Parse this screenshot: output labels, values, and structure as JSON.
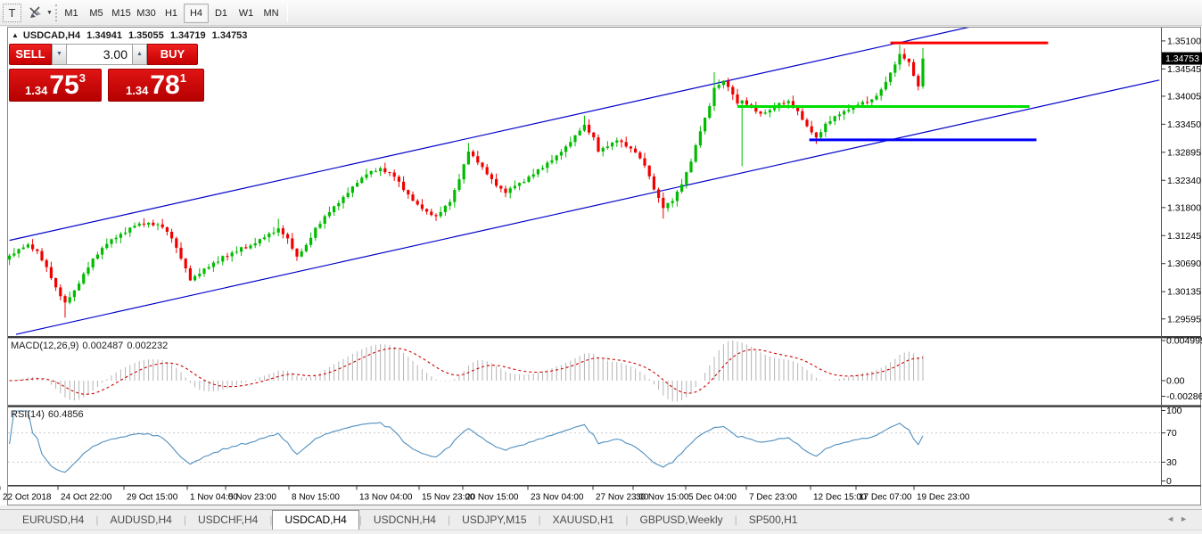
{
  "icons": {
    "header_triangle": "▲",
    "spin_up": "▲",
    "spin_down": "▼",
    "toolbar_caret": "▼",
    "tab_prev": "◄",
    "tab_next": "►",
    "text_tool": "T"
  },
  "toolbar": {
    "timeframes": [
      "M1",
      "M5",
      "M15",
      "M30",
      "H1",
      "H4",
      "D1",
      "W1",
      "MN"
    ],
    "active_timeframe": "H4"
  },
  "header": {
    "symbol": "USDCAD,H4",
    "open": "1.34941",
    "high": "1.35055",
    "low": "1.34719",
    "close": "1.34753"
  },
  "trade_panel": {
    "sell_label": "SELL",
    "buy_label": "BUY",
    "volume": "3.00",
    "sell": {
      "prefix": "1.34",
      "big": "75",
      "sup": "3"
    },
    "buy": {
      "prefix": "1.34",
      "big": "78",
      "sup": "1"
    }
  },
  "macd_panel": {
    "name": "MACD(12,26,9)",
    "value_main": "0.002487",
    "value_signal": "0.002232",
    "axis_labels": [
      "0.004995",
      "0.00",
      "-0.00286"
    ]
  },
  "rsi_panel": {
    "name": "RSI(14)",
    "value": "60.4856",
    "axis_labels": [
      "100",
      "70",
      "30",
      "0"
    ],
    "levels": [
      70,
      30
    ]
  },
  "tabs": {
    "items": [
      "EURUSD,H4",
      "AUDUSD,H4",
      "USDCHF,H4",
      "USDCAD,H4",
      "USDCNH,H4",
      "USDJPY,M15",
      "XAUUSD,H1",
      "GBPUSD,Weekly",
      "SP500,H1"
    ],
    "active": "USDCAD,H4"
  },
  "colors": {
    "candle_up": "#00bb00",
    "candle_down": "#f20000",
    "wick_up": "#00bb00",
    "wick_down": "#f20000",
    "macd_hist": "#b4b4b4",
    "macd_signal": "#cc0000",
    "rsi_line": "#4f8fc0",
    "channel": "#0000cc",
    "hline_red": "#ff0000",
    "hline_green": "#00e000",
    "hline_blue": "#0000ff"
  },
  "chart_data": {
    "type": "candlestick",
    "symbol": "USDCAD",
    "timeframe": "H4",
    "ohlc_current": {
      "open": 1.34941,
      "high": 1.35055,
      "low": 1.34719,
      "close": 1.34753
    },
    "price_axis_ticks": [
      "1.35100",
      "1.34545",
      "1.34005",
      "1.33450",
      "1.32895",
      "1.32340",
      "1.31800",
      "1.31245",
      "1.30690",
      "1.30135",
      "1.29595"
    ],
    "current_price": "1.34753",
    "ylim": [
      1.29273,
      1.35363
    ],
    "candle_count": 198,
    "close_waypoints": [
      [
        0,
        1.3085
      ],
      [
        2,
        1.3098
      ],
      [
        4,
        1.3107
      ],
      [
        6,
        1.3094
      ],
      [
        8,
        1.3062
      ],
      [
        10,
        1.3022
      ],
      [
        12,
        1.2992
      ],
      [
        14,
        1.3016
      ],
      [
        16,
        1.3049
      ],
      [
        18,
        1.3079
      ],
      [
        21,
        1.3108
      ],
      [
        24,
        1.3128
      ],
      [
        27,
        1.3144
      ],
      [
        30,
        1.315
      ],
      [
        33,
        1.3141
      ],
      [
        35,
        1.3119
      ],
      [
        37,
        1.3079
      ],
      [
        39,
        1.3036
      ],
      [
        41,
        1.3049
      ],
      [
        44,
        1.3071
      ],
      [
        48,
        1.3091
      ],
      [
        52,
        1.3105
      ],
      [
        55,
        1.3121
      ],
      [
        58,
        1.3139
      ],
      [
        60,
        1.3119
      ],
      [
        62,
        1.3083
      ],
      [
        64,
        1.3106
      ],
      [
        66,
        1.314
      ],
      [
        69,
        1.3171
      ],
      [
        72,
        1.3201
      ],
      [
        75,
        1.3229
      ],
      [
        77,
        1.3246
      ],
      [
        80,
        1.3258
      ],
      [
        83,
        1.3241
      ],
      [
        86,
        1.3206
      ],
      [
        88,
        1.3186
      ],
      [
        90,
        1.3172
      ],
      [
        92,
        1.3163
      ],
      [
        95,
        1.3191
      ],
      [
        97,
        1.3236
      ],
      [
        99,
        1.3291
      ],
      [
        101,
        1.3269
      ],
      [
        103,
        1.3246
      ],
      [
        105,
        1.3223
      ],
      [
        107,
        1.3209
      ],
      [
        109,
        1.3223
      ],
      [
        111,
        1.3231
      ],
      [
        113,
        1.3246
      ],
      [
        116,
        1.3269
      ],
      [
        118,
        1.3283
      ],
      [
        120,
        1.3301
      ],
      [
        122,
        1.3323
      ],
      [
        124,
        1.3344
      ],
      [
        126,
        1.3319
      ],
      [
        127,
        1.3291
      ],
      [
        129,
        1.3301
      ],
      [
        131,
        1.3313
      ],
      [
        133,
        1.3301
      ],
      [
        135,
        1.3289
      ],
      [
        137,
        1.3263
      ],
      [
        139,
        1.3216
      ],
      [
        141,
        1.3179
      ],
      [
        143,
        1.3193
      ],
      [
        145,
        1.3226
      ],
      [
        147,
        1.3271
      ],
      [
        149,
        1.3331
      ],
      [
        151,
        1.3381
      ],
      [
        152,
        1.3417
      ],
      [
        154,
        1.3431
      ],
      [
        155,
        1.3419
      ],
      [
        157,
        1.3386
      ],
      [
        158,
        1.3392
      ],
      [
        160,
        1.3379
      ],
      [
        162,
        1.3366
      ],
      [
        164,
        1.3373
      ],
      [
        166,
        1.3387
      ],
      [
        168,
        1.3391
      ],
      [
        170,
        1.3371
      ],
      [
        172,
        1.3341
      ],
      [
        174,
        1.3319
      ],
      [
        176,
        1.3346
      ],
      [
        178,
        1.3361
      ],
      [
        180,
        1.3371
      ],
      [
        182,
        1.3381
      ],
      [
        184,
        1.3389
      ],
      [
        186,
        1.3394
      ],
      [
        188,
        1.3414
      ],
      [
        190,
        1.3447
      ],
      [
        192,
        1.3484
      ],
      [
        194,
        1.3468
      ],
      [
        196,
        1.342
      ],
      [
        197,
        1.34753
      ]
    ],
    "special_wicks": [
      [
        12,
        "low",
        1.2962
      ],
      [
        58,
        "high",
        1.3158
      ],
      [
        99,
        "high",
        1.3308
      ],
      [
        124,
        "high",
        1.3362
      ],
      [
        141,
        "low",
        1.3158
      ],
      [
        152,
        "high",
        1.3448
      ],
      [
        158,
        "low",
        1.3262
      ],
      [
        174,
        "low",
        1.3306
      ],
      [
        192,
        "high",
        1.3502
      ],
      [
        196,
        "low",
        1.3412
      ],
      [
        197,
        "high",
        1.3496
      ]
    ],
    "jitter_pattern": [
      0.00035,
      -0.00045,
      0.00055,
      -0.00025,
      0.0004,
      -0.0006,
      0.0003,
      -0.0005,
      0.00045,
      -0.00035
    ],
    "wick_pattern": [
      3,
      7,
      2,
      9,
      4,
      6,
      1,
      8,
      3,
      5,
      7,
      2
    ],
    "indicators": [
      {
        "name": "MACD",
        "params": [
          12,
          26,
          9
        ],
        "display_main": 0.002487,
        "display_signal": 0.002232,
        "axis_values": [
          0.004995,
          0,
          -0.00286
        ]
      },
      {
        "name": "RSI",
        "params": [
          14
        ],
        "display": 60.4856,
        "levels": [
          70,
          30
        ],
        "range": [
          0,
          100
        ]
      }
    ],
    "overlays": {
      "channel_lines": [
        {
          "i": [
            0,
            207.2
          ],
          "p": [
            1.31151,
            1.35378
          ]
        },
        {
          "i": [
            1.42,
            248
          ],
          "p": [
            1.2929,
            1.34325
          ]
        }
      ],
      "hlines": [
        {
          "color": "hline_red",
          "p": 1.3506,
          "i": [
            190,
            224
          ],
          "w": 3
        },
        {
          "color": "hline_green",
          "p": 1.338,
          "i": [
            157,
            220
          ],
          "w": 3
        },
        {
          "color": "hline_blue",
          "p": 1.3314,
          "i": [
            172.5,
            221.5
          ],
          "w": 3
        }
      ]
    },
    "time_axis": {
      "labels": [
        "22 Oct 2018",
        "24 Oct 22:00",
        "29 Oct 15:00",
        "1 Nov 04:00",
        "5 Nov 23:00",
        "8 Nov 15:00",
        "13 Nov 04:00",
        "15 Nov 23:00",
        "20 Nov 15:00",
        "23 Nov 04:00",
        "27 Nov 23:00",
        "30 Nov 15:00",
        "5 Dec 04:00",
        "7 Dec 23:00",
        "12 Dec 15:00",
        "17 Dec 07:00",
        "19 Dec 23:00"
      ],
      "x_ticks": [
        0,
        65,
        139,
        210,
        253,
        324,
        400,
        470,
        519,
        592,
        665,
        710,
        769,
        837,
        909,
        960,
        1025
      ]
    }
  }
}
